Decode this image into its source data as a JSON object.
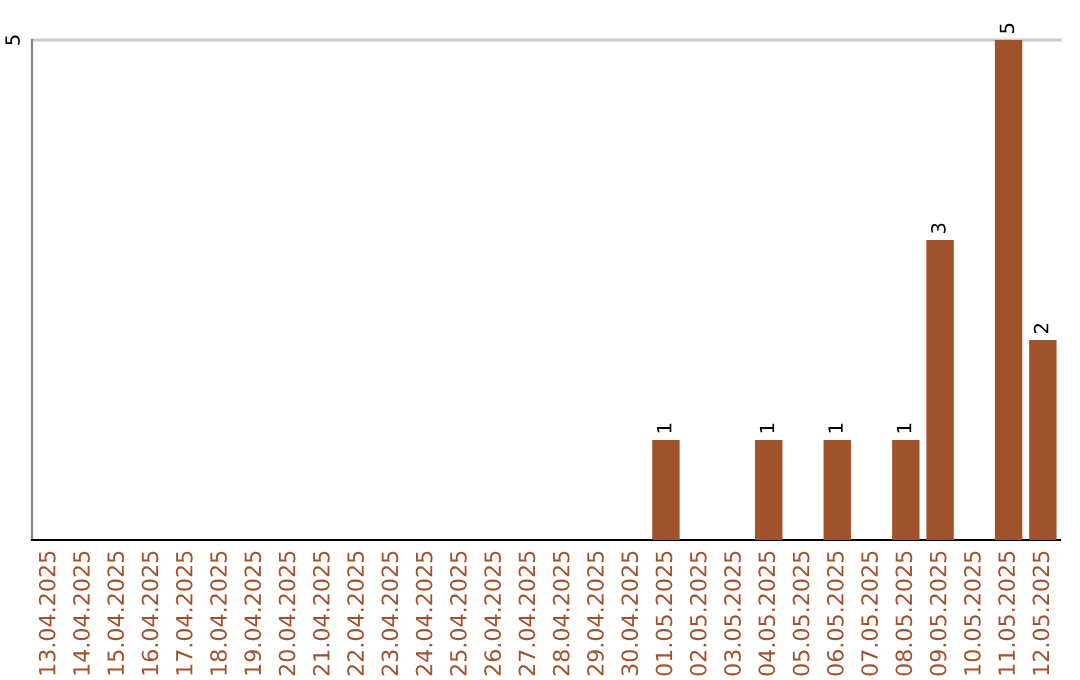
{
  "chart_data": {
    "type": "bar",
    "categories": [
      "13.04.2025",
      "14.04.2025",
      "15.04.2025",
      "16.04.2025",
      "17.04.2025",
      "18.04.2025",
      "19.04.2025",
      "20.04.2025",
      "21.04.2025",
      "22.04.2025",
      "23.04.2025",
      "24.04.2025",
      "25.04.2025",
      "26.04.2025",
      "27.04.2025",
      "28.04.2025",
      "29.04.2025",
      "30.04.2025",
      "01.05.2025",
      "02.05.2025",
      "03.05.2025",
      "04.05.2025",
      "05.05.2025",
      "06.05.2025",
      "07.05.2025",
      "08.05.2025",
      "09.05.2025",
      "10.05.2025",
      "11.05.2025",
      "12.05.2025"
    ],
    "values": [
      null,
      null,
      null,
      null,
      null,
      null,
      null,
      null,
      null,
      null,
      null,
      null,
      null,
      null,
      null,
      null,
      null,
      null,
      1,
      null,
      null,
      1,
      null,
      1,
      null,
      1,
      3,
      null,
      5,
      2
    ],
    "data_labels": true,
    "color": "#a0522d",
    "ylim": [
      0,
      5
    ],
    "yticks": [
      5
    ],
    "ref_lines": [
      {
        "axis": "y",
        "value": 5,
        "color": "#cccccc"
      }
    ]
  }
}
